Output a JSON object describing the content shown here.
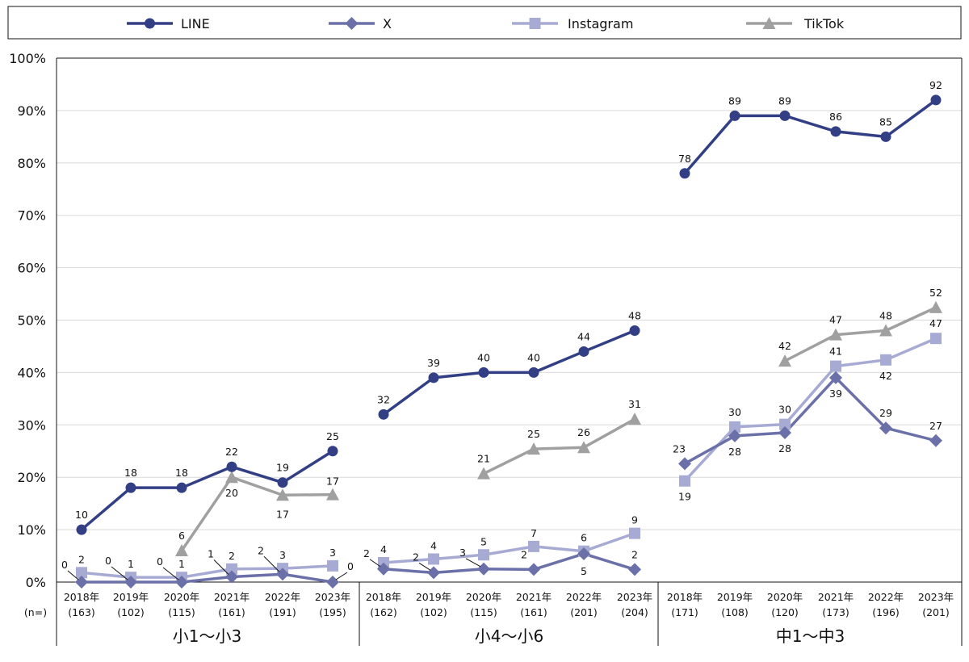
{
  "chart_data": {
    "type": "line",
    "y_axis": {
      "min": 0,
      "max": 100,
      "step": 10,
      "suffix": "%"
    },
    "n_label": "(n=)",
    "groups": [
      {
        "label": "小1～小3",
        "years": [
          "2018年",
          "2019年",
          "2020年",
          "2021年",
          "2022年",
          "2023年"
        ],
        "n": [
          "(163)",
          "(102)",
          "(115)",
          "(161)",
          "(191)",
          "(195)"
        ]
      },
      {
        "label": "小4～小6",
        "years": [
          "2018年",
          "2019年",
          "2020年",
          "2021年",
          "2022年",
          "2023年"
        ],
        "n": [
          "(162)",
          "(102)",
          "(115)",
          "(161)",
          "(201)",
          "(204)"
        ]
      },
      {
        "label": "中1～中3",
        "years": [
          "2018年",
          "2019年",
          "2020年",
          "2021年",
          "2022年",
          "2023年"
        ],
        "n": [
          "(171)",
          "(108)",
          "(120)",
          "(173)",
          "(196)",
          "(201)"
        ]
      }
    ],
    "series": [
      {
        "name": "LINE",
        "color": "#333f85",
        "marker": "circle",
        "values": [
          [
            10,
            18,
            18,
            22,
            19,
            25
          ],
          [
            32,
            39,
            40,
            40,
            44,
            48
          ],
          [
            78,
            89,
            89,
            86,
            85,
            92
          ]
        ],
        "labels": [
          [
            "10",
            "18",
            "18",
            "22",
            "19",
            "25"
          ],
          [
            "32",
            "39",
            "40",
            "40",
            "44",
            "48"
          ],
          [
            "78",
            "89",
            "89",
            "86",
            "85",
            "92"
          ]
        ]
      },
      {
        "name": "X",
        "color": "#6b70a8",
        "marker": "diamond",
        "values": [
          [
            0,
            0,
            0,
            1,
            1.5,
            0
          ],
          [
            2.5,
            1.8,
            2.5,
            2.4,
            5.4,
            2.4
          ],
          [
            22.6,
            27.9,
            28.5,
            39,
            29.4,
            27
          ]
        ],
        "labels": [
          [
            "0",
            "0",
            "0",
            "1",
            "2",
            "0"
          ],
          [
            "2",
            "2",
            "3",
            "2",
            "5",
            "2"
          ],
          [
            "23",
            "28",
            "28",
            "39",
            "29",
            "27"
          ]
        ]
      },
      {
        "name": "Instagram",
        "color": "#a7abd4",
        "marker": "square",
        "values": [
          [
            1.8,
            0.9,
            0.9,
            2.5,
            2.6,
            3.1
          ],
          [
            3.7,
            4.4,
            5.2,
            6.8,
            5.9,
            9.3
          ],
          [
            19.3,
            29.6,
            30.1,
            41.2,
            42.4,
            46.5
          ]
        ],
        "labels": [
          [
            "2",
            "1",
            "1",
            "2",
            "3",
            "3"
          ],
          [
            "4",
            "4",
            "5",
            "7",
            "6",
            "9"
          ],
          [
            "19",
            "30",
            "30",
            "41",
            "42",
            "47"
          ]
        ]
      },
      {
        "name": "TikTok",
        "color": "#a0a0a0",
        "marker": "triangle",
        "values": [
          [
            null,
            null,
            6,
            20,
            16.6,
            16.7
          ],
          [
            null,
            null,
            20.7,
            25.4,
            25.7,
            31.1
          ],
          [
            null,
            null,
            42.2,
            47.2,
            48.0,
            52.4
          ]
        ],
        "labels": [
          [
            "",
            "",
            "6",
            "20",
            "17",
            "17"
          ],
          [
            "",
            "",
            "21",
            "25",
            "26",
            "31"
          ],
          [
            "",
            "",
            "42",
            "47",
            "48",
            "52"
          ]
        ]
      }
    ]
  }
}
